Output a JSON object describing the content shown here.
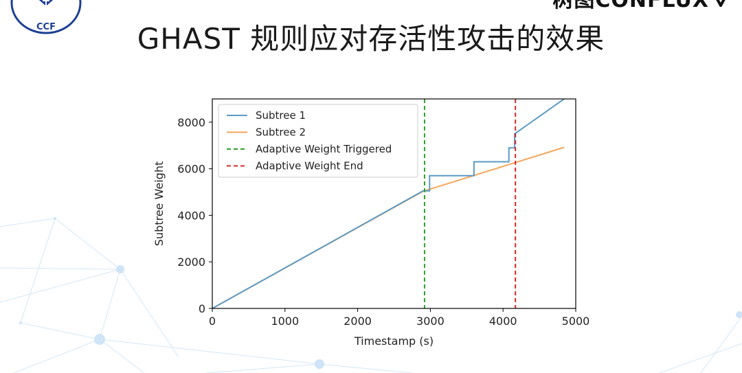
{
  "slide": {
    "title": "GHAST 规则应对存活性攻击的效果",
    "ccf_logo_text": "CCF",
    "brand_logo_text": "树图CONFLUX"
  },
  "icons": {
    "ccf_logo": "ccf-emblem-icon",
    "brand_mark": "conflux-mark-icon"
  },
  "colors": {
    "subtree1": "#5b9bc6",
    "subtree2": "#f5a55a",
    "triggered": "#2ca02c",
    "end": "#d62728",
    "logo_blue": "#1c3f94"
  },
  "chart_data": {
    "type": "line",
    "title": "",
    "xlabel": "Timestamp (s)",
    "ylabel": "Subtree Weight",
    "xlim": [
      0,
      5000
    ],
    "ylim": [
      0,
      9000
    ],
    "xticks": [
      0,
      1000,
      2000,
      3000,
      4000,
      5000
    ],
    "yticks": [
      0,
      2000,
      4000,
      6000,
      8000
    ],
    "grid": false,
    "legend_position": "upper-left",
    "series": [
      {
        "name": "Subtree 1",
        "color": "#5b9bc6",
        "points": [
          [
            0,
            0
          ],
          [
            2900,
            5050
          ],
          [
            2990,
            5050
          ],
          [
            2990,
            5700
          ],
          [
            3600,
            5700
          ],
          [
            3600,
            6300
          ],
          [
            4080,
            6300
          ],
          [
            4080,
            6900
          ],
          [
            4160,
            6900
          ],
          [
            4160,
            7500
          ],
          [
            4840,
            9000
          ]
        ]
      },
      {
        "name": "Subtree 2",
        "color": "#f5a55a",
        "points": [
          [
            0,
            0
          ],
          [
            2900,
            5030
          ],
          [
            4840,
            6920
          ]
        ]
      }
    ],
    "vlines": [
      {
        "name": "Adaptive Weight Triggered",
        "x": 2920,
        "color": "#2ca02c",
        "style": "dashed"
      },
      {
        "name": "Adaptive Weight End",
        "x": 4170,
        "color": "#d62728",
        "style": "dashed"
      }
    ]
  }
}
